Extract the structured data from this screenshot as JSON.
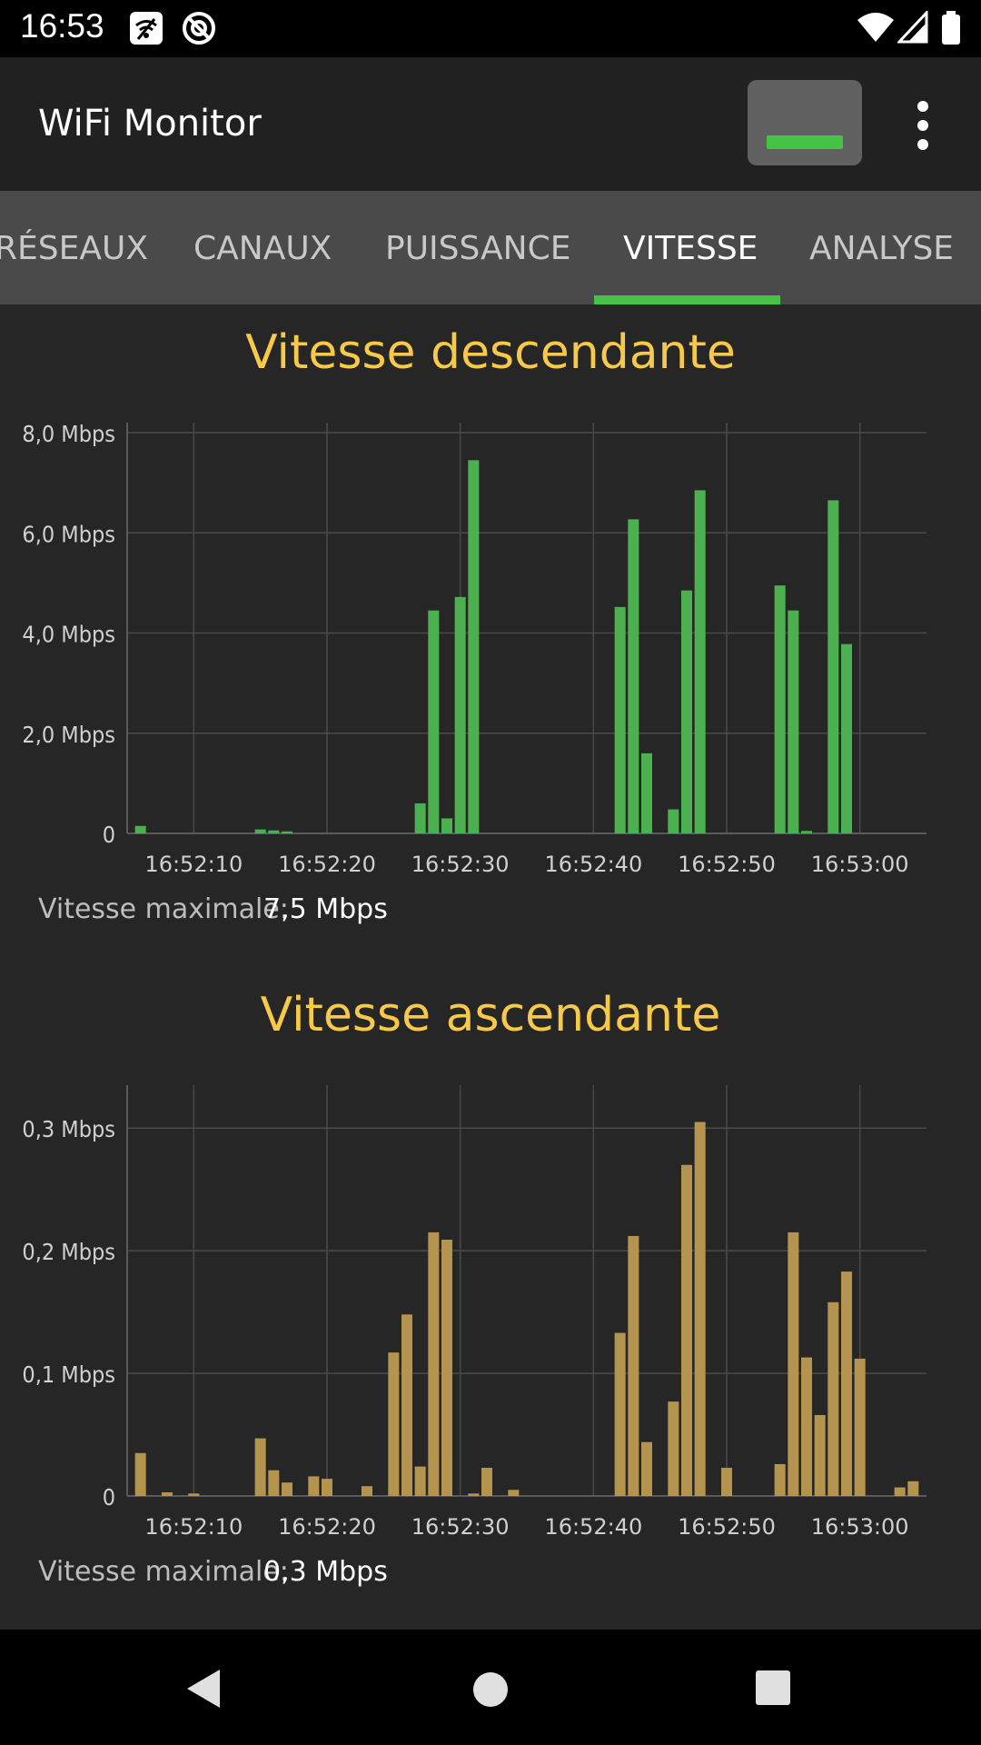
{
  "status_bar": {
    "time": "16:53",
    "left_icons": [
      "wifi-warning-icon",
      "at-sign-icon"
    ],
    "right_icons": [
      "wifi-signal-icon",
      "cell-signal-icon",
      "battery-icon"
    ]
  },
  "app_bar": {
    "title": "WiFi Monitor",
    "toggle_icon": "monitor-toggle-icon",
    "menu_icon": "more-vert-icon"
  },
  "tabs": [
    {
      "label": "RÉSEAUX",
      "active": false
    },
    {
      "label": "CANAUX",
      "active": false
    },
    {
      "label": "PUISSANCE",
      "active": false
    },
    {
      "label": "VITESSE",
      "active": true
    },
    {
      "label": "ANALYSE",
      "active": false
    }
  ],
  "colors": {
    "accent": "#43c443",
    "title": "#f7c948",
    "download_bar": "#4caf50",
    "upload_bar": "#b5944f"
  },
  "download": {
    "title": "Vitesse descendante",
    "max_label": "Vitesse maximale:",
    "max_value": "7,5 Mbps"
  },
  "upload": {
    "title": "Vitesse ascendante",
    "max_label": "Vitesse maximale:",
    "max_value": "0,3 Mbps"
  },
  "chart_data": [
    {
      "type": "bar",
      "title": "Vitesse descendante",
      "unit": "Mbps",
      "color": "#4caf50",
      "ylim": [
        0,
        8.2
      ],
      "yticks": [
        0,
        2,
        4,
        6,
        8
      ],
      "ytick_labels": [
        "0",
        "2,0 Mbps",
        "4,0 Mbps",
        "6,0 Mbps",
        "8,0 Mbps"
      ],
      "xlim": [
        5,
        65
      ],
      "xticks": [
        10,
        20,
        30,
        40,
        50,
        60
      ],
      "xtick_labels": [
        "16:52:10",
        "16:52:20",
        "16:52:30",
        "16:52:40",
        "16:52:50",
        "16:53:00"
      ],
      "grid": true,
      "x": [
        6,
        7,
        8,
        9,
        10,
        11,
        12,
        13,
        14,
        15,
        16,
        17,
        18,
        19,
        20,
        21,
        22,
        23,
        24,
        25,
        26,
        27,
        28,
        29,
        30,
        31,
        32,
        33,
        34,
        35,
        36,
        37,
        38,
        39,
        40,
        41,
        42,
        43,
        44,
        45,
        46,
        47,
        48,
        49,
        50,
        51,
        52,
        53,
        54,
        55,
        56,
        57,
        58,
        59,
        60,
        61,
        62,
        63,
        64
      ],
      "values": [
        0.15,
        0,
        0,
        0,
        0,
        0,
        0,
        0,
        0,
        0.08,
        0.06,
        0.04,
        0,
        0,
        0,
        0,
        0,
        0,
        0,
        0,
        0,
        0.6,
        4.45,
        0.3,
        4.72,
        7.45,
        0,
        0,
        0,
        0,
        0,
        0,
        0,
        0,
        0,
        0,
        4.52,
        6.27,
        1.6,
        0,
        0.48,
        4.85,
        6.85,
        0,
        0,
        0,
        0,
        0,
        4.95,
        4.45,
        0.05,
        0,
        6.65,
        3.78,
        0,
        0,
        0,
        0,
        0
      ]
    },
    {
      "type": "bar",
      "title": "Vitesse ascendante",
      "unit": "Mbps",
      "color": "#b5944f",
      "ylim": [
        0,
        0.335
      ],
      "yticks": [
        0,
        0.1,
        0.2,
        0.3
      ],
      "ytick_labels": [
        "0",
        "0,1 Mbps",
        "0,2 Mbps",
        "0,3 Mbps"
      ],
      "xlim": [
        5,
        65
      ],
      "xticks": [
        10,
        20,
        30,
        40,
        50,
        60
      ],
      "xtick_labels": [
        "16:52:10",
        "16:52:20",
        "16:52:30",
        "16:52:40",
        "16:52:50",
        "16:53:00"
      ],
      "grid": true,
      "x": [
        6,
        7,
        8,
        9,
        10,
        11,
        12,
        13,
        14,
        15,
        16,
        17,
        18,
        19,
        20,
        21,
        22,
        23,
        24,
        25,
        26,
        27,
        28,
        29,
        30,
        31,
        32,
        33,
        34,
        35,
        36,
        37,
        38,
        39,
        40,
        41,
        42,
        43,
        44,
        45,
        46,
        47,
        48,
        49,
        50,
        51,
        52,
        53,
        54,
        55,
        56,
        57,
        58,
        59,
        60,
        61,
        62,
        63,
        64
      ],
      "values": [
        0.035,
        0,
        0.003,
        0,
        0.002,
        0,
        0,
        0,
        0,
        0.047,
        0.021,
        0.011,
        0,
        0.016,
        0.014,
        0,
        0,
        0.008,
        0,
        0.117,
        0.148,
        0.024,
        0.215,
        0.209,
        0,
        0.002,
        0.023,
        0,
        0.005,
        0,
        0,
        0,
        0,
        0,
        0,
        0,
        0.133,
        0.212,
        0.044,
        0,
        0.077,
        0.27,
        0.305,
        0,
        0.023,
        0,
        0,
        0,
        0.026,
        0.215,
        0.113,
        0.066,
        0.158,
        0.183,
        0.112,
        0,
        0,
        0.007,
        0.012
      ]
    }
  ],
  "nav_bar": {
    "icons": [
      "back-icon",
      "home-icon",
      "recents-icon"
    ]
  }
}
